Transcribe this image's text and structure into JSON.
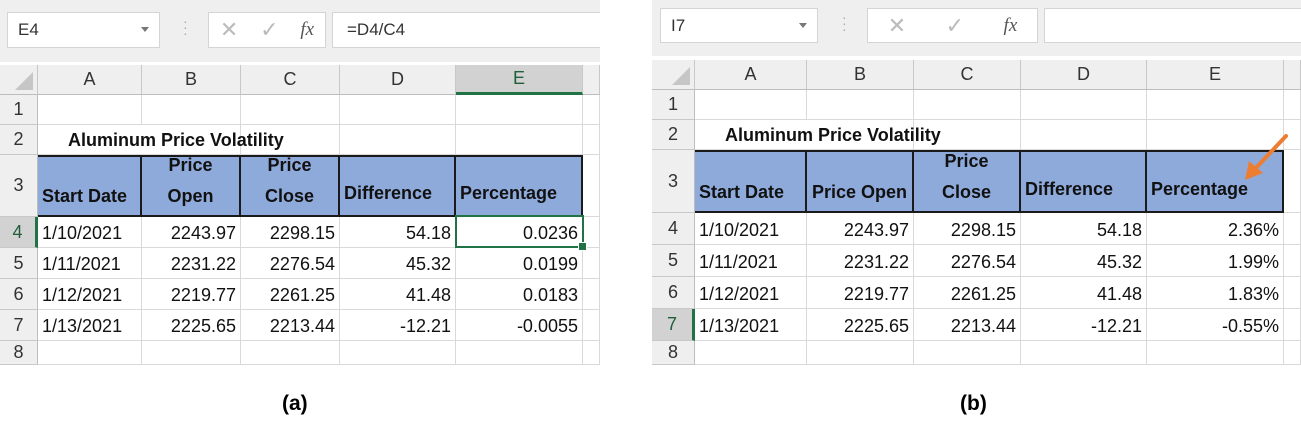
{
  "panels": [
    {
      "caption": "(a)",
      "name_box": "E4",
      "formula": "=D4/C4",
      "formula_icons": {
        "cancel": "✕",
        "enter": "✓",
        "function": "fx"
      },
      "columns": [
        "A",
        "B",
        "C",
        "D",
        "E"
      ],
      "rows": [
        "1",
        "2",
        "3",
        "4",
        "5",
        "6",
        "7",
        "8"
      ],
      "selected_column": "E",
      "selected_row": "4",
      "title": "Aluminum Price Volatility",
      "table_headers": [
        "Start Date",
        "Price Open",
        "Price Close",
        "Difference",
        "Percentage"
      ],
      "table_rows": [
        [
          "1/10/2021",
          "2243.97",
          "2298.15",
          "54.18",
          "0.0236"
        ],
        [
          "1/11/2021",
          "2231.22",
          "2276.54",
          "45.32",
          "0.0199"
        ],
        [
          "1/12/2021",
          "2219.77",
          "2261.25",
          "41.48",
          "0.0183"
        ],
        [
          "1/13/2021",
          "2225.65",
          "2213.44",
          "-12.21",
          "-0.0055"
        ]
      ]
    },
    {
      "caption": "(b)",
      "name_box": "I7",
      "formula": "",
      "formula_icons": {
        "cancel": "✕",
        "enter": "✓",
        "function": "fx"
      },
      "columns": [
        "A",
        "B",
        "C",
        "D",
        "E"
      ],
      "rows": [
        "1",
        "2",
        "3",
        "4",
        "5",
        "6",
        "7",
        "8"
      ],
      "selected_column": "",
      "selected_row": "7",
      "title": "Aluminum Price Volatility",
      "table_headers": [
        "Start Date",
        "Price Open",
        "Price Close",
        "Difference",
        "Percentage"
      ],
      "table_rows": [
        [
          "1/10/2021",
          "2243.97",
          "2298.15",
          "54.18",
          "2.36%"
        ],
        [
          "1/11/2021",
          "2231.22",
          "2276.54",
          "45.32",
          "1.99%"
        ],
        [
          "1/12/2021",
          "2219.77",
          "2261.25",
          "41.48",
          "1.83%"
        ],
        [
          "1/13/2021",
          "2225.65",
          "2213.44",
          "-12.21",
          "-0.55%"
        ]
      ],
      "annotation_arrow_color": "#ed7d31"
    }
  ],
  "colors": {
    "header_fill": "#8eaadb",
    "selection": "#217346"
  }
}
